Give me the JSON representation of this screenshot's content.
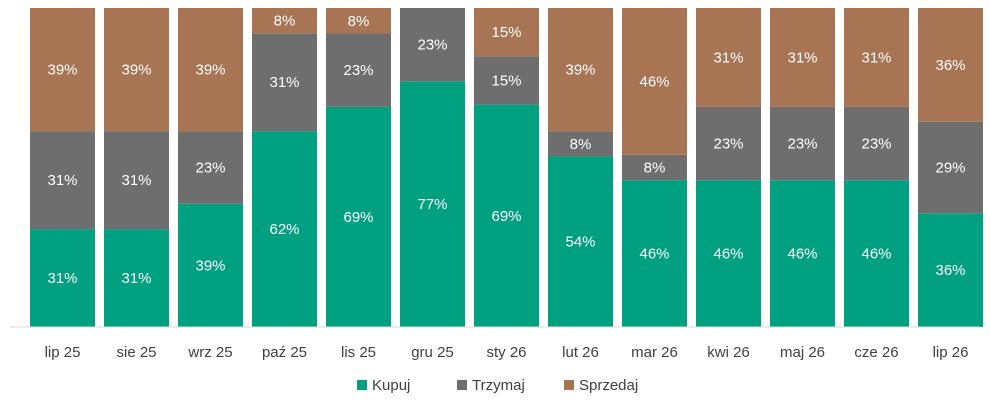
{
  "chart_data": {
    "type": "bar",
    "stacked": true,
    "categories": [
      "lip 25",
      "sie 25",
      "wrz 25",
      "paź 25",
      "lis 25",
      "gru 25",
      "sty 26",
      "lut 26",
      "mar 26",
      "kwi 26",
      "maj 26",
      "cze 26",
      "lip 26"
    ],
    "series": [
      {
        "name": "Kupuj",
        "color": "#00A080",
        "values": [
          31,
          31,
          39,
          62,
          69,
          77,
          69,
          54,
          46,
          46,
          46,
          46,
          36
        ]
      },
      {
        "name": "Trzymaj",
        "color": "#6E6E6E",
        "values": [
          31,
          31,
          23,
          31,
          23,
          23,
          15,
          8,
          8,
          23,
          23,
          23,
          29
        ]
      },
      {
        "name": "Sprzedaj",
        "color": "#A87554",
        "values": [
          39,
          39,
          39,
          8,
          8,
          0,
          15,
          39,
          46,
          31,
          31,
          31,
          36
        ]
      }
    ],
    "labels": [
      [
        "31%",
        "31%",
        "39%",
        "62%",
        "69%",
        "77%",
        "69%",
        "54%",
        "46%",
        "46%",
        "46%",
        "46%",
        "36%"
      ],
      [
        "31%",
        "31%",
        "23%",
        "31%",
        "23%",
        "23%",
        "15%",
        "8%",
        "8%",
        "23%",
        "23%",
        "23%",
        "29%"
      ],
      [
        "39%",
        "39%",
        "39%",
        "8%",
        "8%",
        "",
        "15%",
        "39%",
        "46%",
        "31%",
        "31%",
        "31%",
        "36%"
      ]
    ],
    "ylim": [
      0,
      100
    ],
    "grid": false,
    "legend_position": "bottom"
  }
}
